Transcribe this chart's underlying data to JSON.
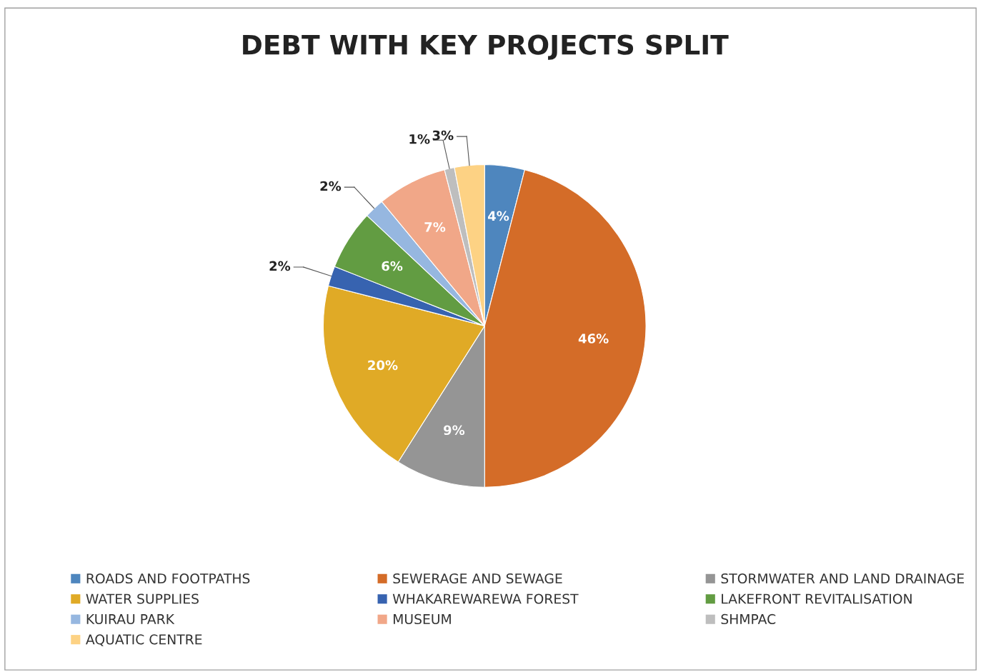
{
  "chart_data": {
    "type": "pie",
    "title": "DEBT WITH KEY PROJECTS SPLIT",
    "categories": [
      "ROADS AND FOOTPATHS",
      "SEWERAGE AND SEWAGE",
      "STORMWATER AND LAND DRAINAGE",
      "WATER SUPPLIES",
      "WHAKAREWAREWA FOREST",
      "LAKEFRONT REVITALISATION",
      "KUIRAU PARK",
      "MUSEUM",
      "SHMPAC",
      "AQUATIC CENTRE"
    ],
    "values": [
      4,
      46,
      9,
      20,
      2,
      6,
      2,
      7,
      1,
      3
    ],
    "colors": [
      "#4e86be",
      "#d46c28",
      "#959595",
      "#e0aa26",
      "#3763b0",
      "#629c42",
      "#96b7e0",
      "#f1a788",
      "#bebebe",
      "#fdd284"
    ],
    "value_labels": [
      "4%",
      "46%",
      "9%",
      "20%",
      "2%",
      "6%",
      "2%",
      "7%",
      "1%",
      "3%"
    ],
    "legend": "bottom"
  }
}
